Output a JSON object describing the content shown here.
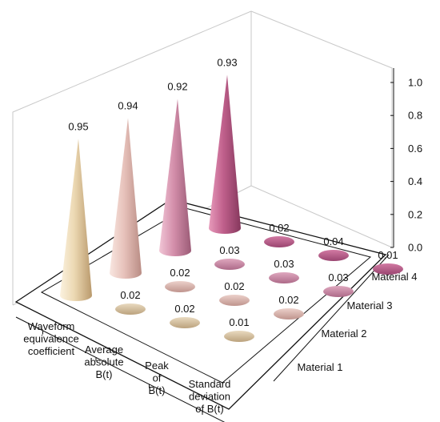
{
  "chart_data": {
    "type": "bar3d-cone",
    "title": "",
    "zlim": [
      0.0,
      1.0
    ],
    "z_ticks": [
      "0.0",
      "0.2",
      "0.4",
      "0.6",
      "0.8",
      "1.0"
    ],
    "categories": [
      [
        "Waveform",
        "equivalence",
        "coefficient"
      ],
      [
        "Average",
        "absolute",
        "B(t)"
      ],
      [
        "Peak",
        "of",
        "B(t)"
      ],
      [
        "Standard",
        "deviation",
        "of B(t)"
      ]
    ],
    "series": [
      {
        "name": "Material 1",
        "values": [
          0.95,
          0.02,
          0.02,
          0.01
        ],
        "labels": [
          "0.95",
          "0.02",
          "0.02",
          "0.01"
        ]
      },
      {
        "name": "Material 2",
        "values": [
          0.94,
          0.02,
          0.02,
          0.02
        ],
        "labels": [
          "0.94",
          "0.02",
          "0.02",
          "0.02"
        ]
      },
      {
        "name": "Material 3",
        "values": [
          0.92,
          0.03,
          0.03,
          0.03
        ],
        "labels": [
          "0.92",
          "0.03",
          "0.03",
          "0.03"
        ]
      },
      {
        "name": "Material 4",
        "values": [
          0.93,
          0.02,
          0.04,
          0.01
        ],
        "labels": [
          "0.93",
          "0.02",
          "0.04",
          "0.01"
        ]
      }
    ],
    "colors": [
      "#e8d3ae",
      "#e6c3bb",
      "#cd8aa6",
      "#b85a86"
    ],
    "legend": "none",
    "grid": false
  }
}
